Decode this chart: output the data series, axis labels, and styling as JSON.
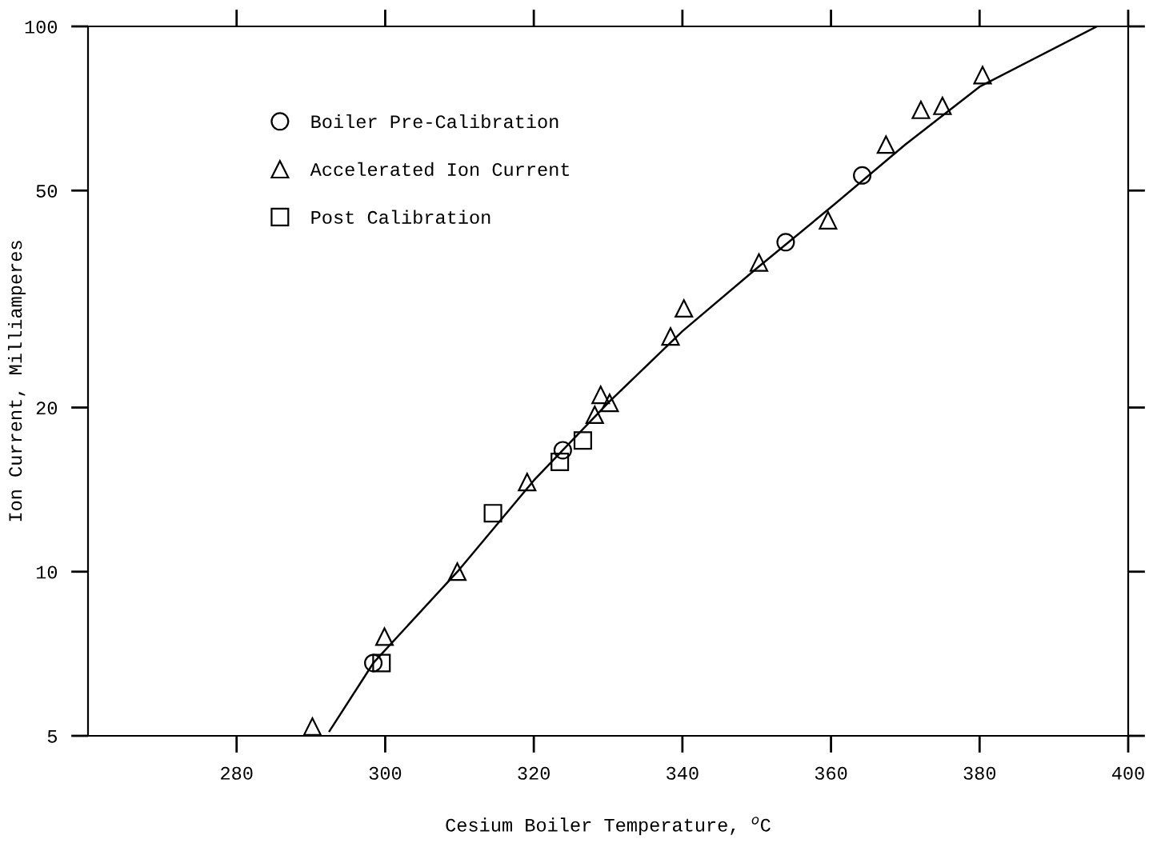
{
  "chart_data": {
    "type": "scatter",
    "xlabel": "Cesium Boiler Temperature, $^{o}$C",
    "ylabel": "Ion Current, Milliamperes",
    "log": "y",
    "xlim": [
      260,
      400
    ],
    "xticks": [
      280,
      300,
      320,
      340,
      360,
      380,
      400
    ],
    "ylim": [
      5,
      100
    ],
    "yticks": [
      5,
      10,
      20,
      50,
      100
    ],
    "grid": false,
    "legend": "top left",
    "series": [
      {
        "name": "Boiler Pre-Calibration",
        "marker": "circle",
        "color": "#000000",
        "x": [
          298.4,
          323.9,
          353.9,
          364.2
        ],
        "values": [
          6.8,
          16.7,
          40.2,
          53.3
        ]
      },
      {
        "name": "Accelerated Ion Current",
        "marker": "triangle",
        "color": "#000000",
        "x": [
          290.2,
          299.9,
          309.7,
          319.1,
          328.2,
          329.0,
          330.2,
          338.4,
          340.2,
          350.3,
          359.6,
          367.4,
          372.1,
          375.0,
          380.4
        ],
        "values": [
          5.2,
          7.6,
          10.0,
          14.6,
          19.4,
          21.1,
          20.4,
          27.0,
          30.4,
          36.9,
          44.1,
          60.7,
          70.3,
          71.5,
          81.4
        ]
      },
      {
        "name": "Post Calibration",
        "marker": "square",
        "color": "#000000",
        "x": [
          299.5,
          314.5,
          323.5,
          326.6
        ],
        "values": [
          6.8,
          12.8,
          15.9,
          17.4
        ]
      },
      {
        "type": "line",
        "marker": "none",
        "line_style": "solid",
        "color": "#000000",
        "x": [
          292.5,
          298.4,
          310,
          320,
          330,
          340,
          350,
          360,
          370,
          380,
          395.8
        ],
        "values": [
          5.1,
          6.8,
          10.1,
          14.7,
          20.4,
          27.6,
          36.0,
          46.6,
          60.7,
          77.5,
          100
        ]
      }
    ]
  }
}
